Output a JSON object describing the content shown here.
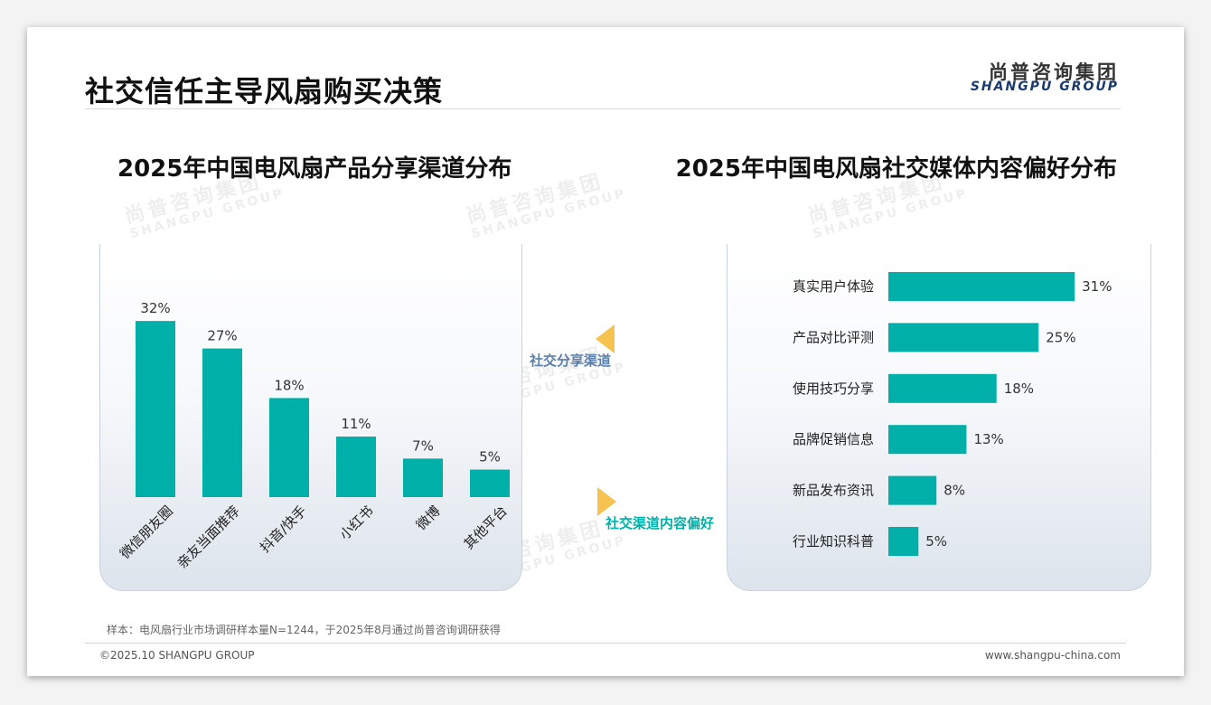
{
  "page": {
    "title": "社交信任主导风扇购买决策",
    "logo_cn": "尚普咨询集团",
    "logo_en": "SHANGPU GROUP",
    "watermark_cn": "尚普咨询集团",
    "watermark_en": "SHANGPU GROUP",
    "note": "样本：电风扇行业市场调研样本量N=1244，于2025年8月通过尚普咨询调研获得",
    "footer_left": "©2025.10 SHANGPU GROUP",
    "footer_right": "www.shangpu-china.com",
    "accent_color": "#00b0a8",
    "left_tag": "社交分享渠道",
    "right_tag": "社交渠道内容偏好",
    "left_tag_color": "#5b7fa8",
    "right_tag_color": "#00b0a8",
    "arrow_color": "#f7c350"
  },
  "chart_data": [
    {
      "type": "bar",
      "title": "2025年中国电风扇产品分享渠道分布",
      "categories": [
        "微信朋友圈",
        "亲友当面推荐",
        "抖音/快手",
        "小红书",
        "微博",
        "其他平台"
      ],
      "values": [
        32,
        27,
        18,
        11,
        7,
        5
      ],
      "data_labels": [
        "32%",
        "27%",
        "18%",
        "11%",
        "7%",
        "5%"
      ],
      "color": "#00b0a8",
      "grid": false
    },
    {
      "type": "bar",
      "orientation": "horizontal",
      "title": "2025年中国电风扇社交媒体内容偏好分布",
      "categories": [
        "真实用户体验",
        "产品对比评测",
        "使用技巧分享",
        "品牌促销信息",
        "新品发布资讯",
        "行业知识科普"
      ],
      "values": [
        31,
        25,
        18,
        13,
        8,
        5
      ],
      "data_labels": [
        "31%",
        "25%",
        "18%",
        "13%",
        "8%",
        "5%"
      ],
      "color": "#00b0a8",
      "grid": false
    }
  ]
}
